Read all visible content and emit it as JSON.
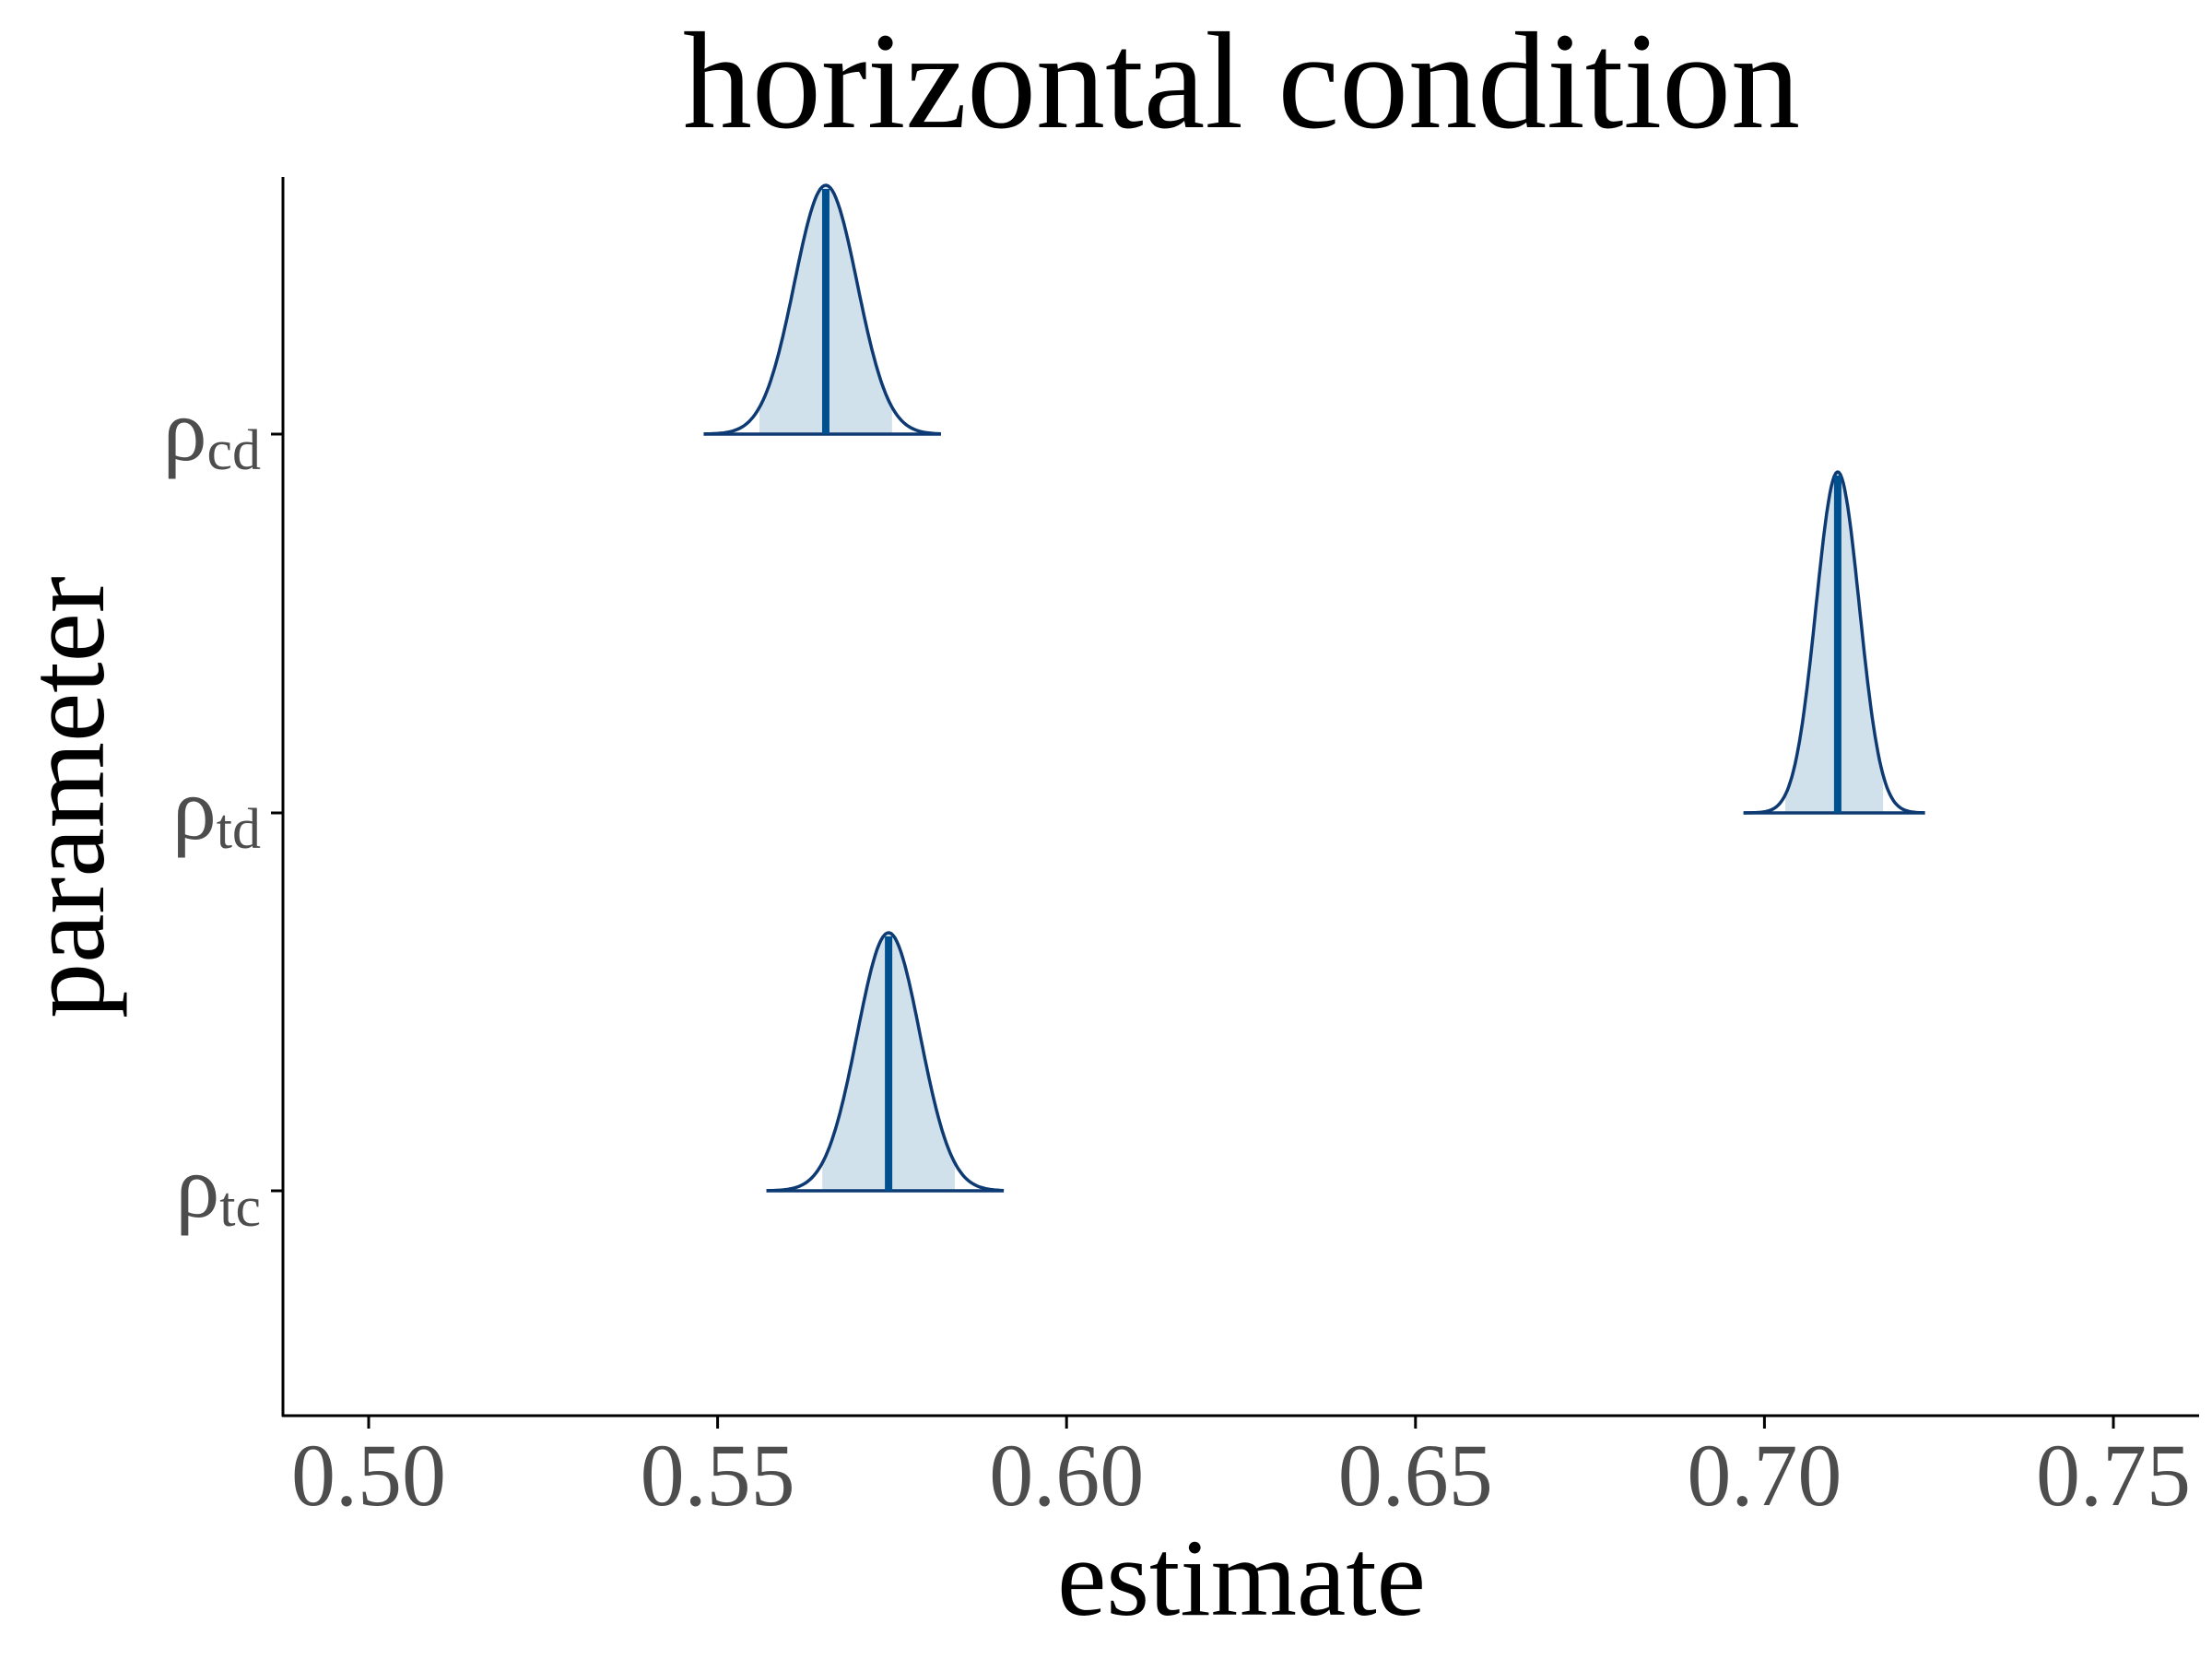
{
  "chart_data": {
    "type": "density",
    "title": "horizontal condition",
    "xlabel": "estimate",
    "ylabel": "parameter",
    "xlim": [
      0.488,
      0.763
    ],
    "x_ticks": [
      0.5,
      0.55,
      0.6,
      0.65,
      0.7,
      0.75
    ],
    "x_tick_labels": [
      "0.50",
      "0.55",
      "0.60",
      "0.65",
      "0.70",
      "0.75"
    ],
    "categories": [
      {
        "symbol": "ρ",
        "subscript": "cd"
      },
      {
        "symbol": "ρ",
        "subscript": "td"
      },
      {
        "symbol": "ρ",
        "subscript": "tc"
      }
    ],
    "series": [
      {
        "category": "ρcd",
        "median": 0.5655,
        "sd": 0.0045,
        "range": [
          0.548,
          0.582
        ],
        "interval": [
          0.556,
          0.575
        ]
      },
      {
        "category": "ρtd",
        "median": 0.7105,
        "sd": 0.0031,
        "range": [
          0.697,
          0.723
        ],
        "interval": [
          0.703,
          0.717
        ]
      },
      {
        "category": "ρtc",
        "median": 0.5745,
        "sd": 0.0045,
        "range": [
          0.557,
          0.591
        ],
        "interval": [
          0.565,
          0.584
        ]
      }
    ],
    "grid": false,
    "colors": {
      "outline": "#0d3a72",
      "fill": "#d1e1ec",
      "median_line": "#00508f",
      "axis": "#000000",
      "tick_label": "#4d4d4d",
      "title": "#000000"
    }
  }
}
